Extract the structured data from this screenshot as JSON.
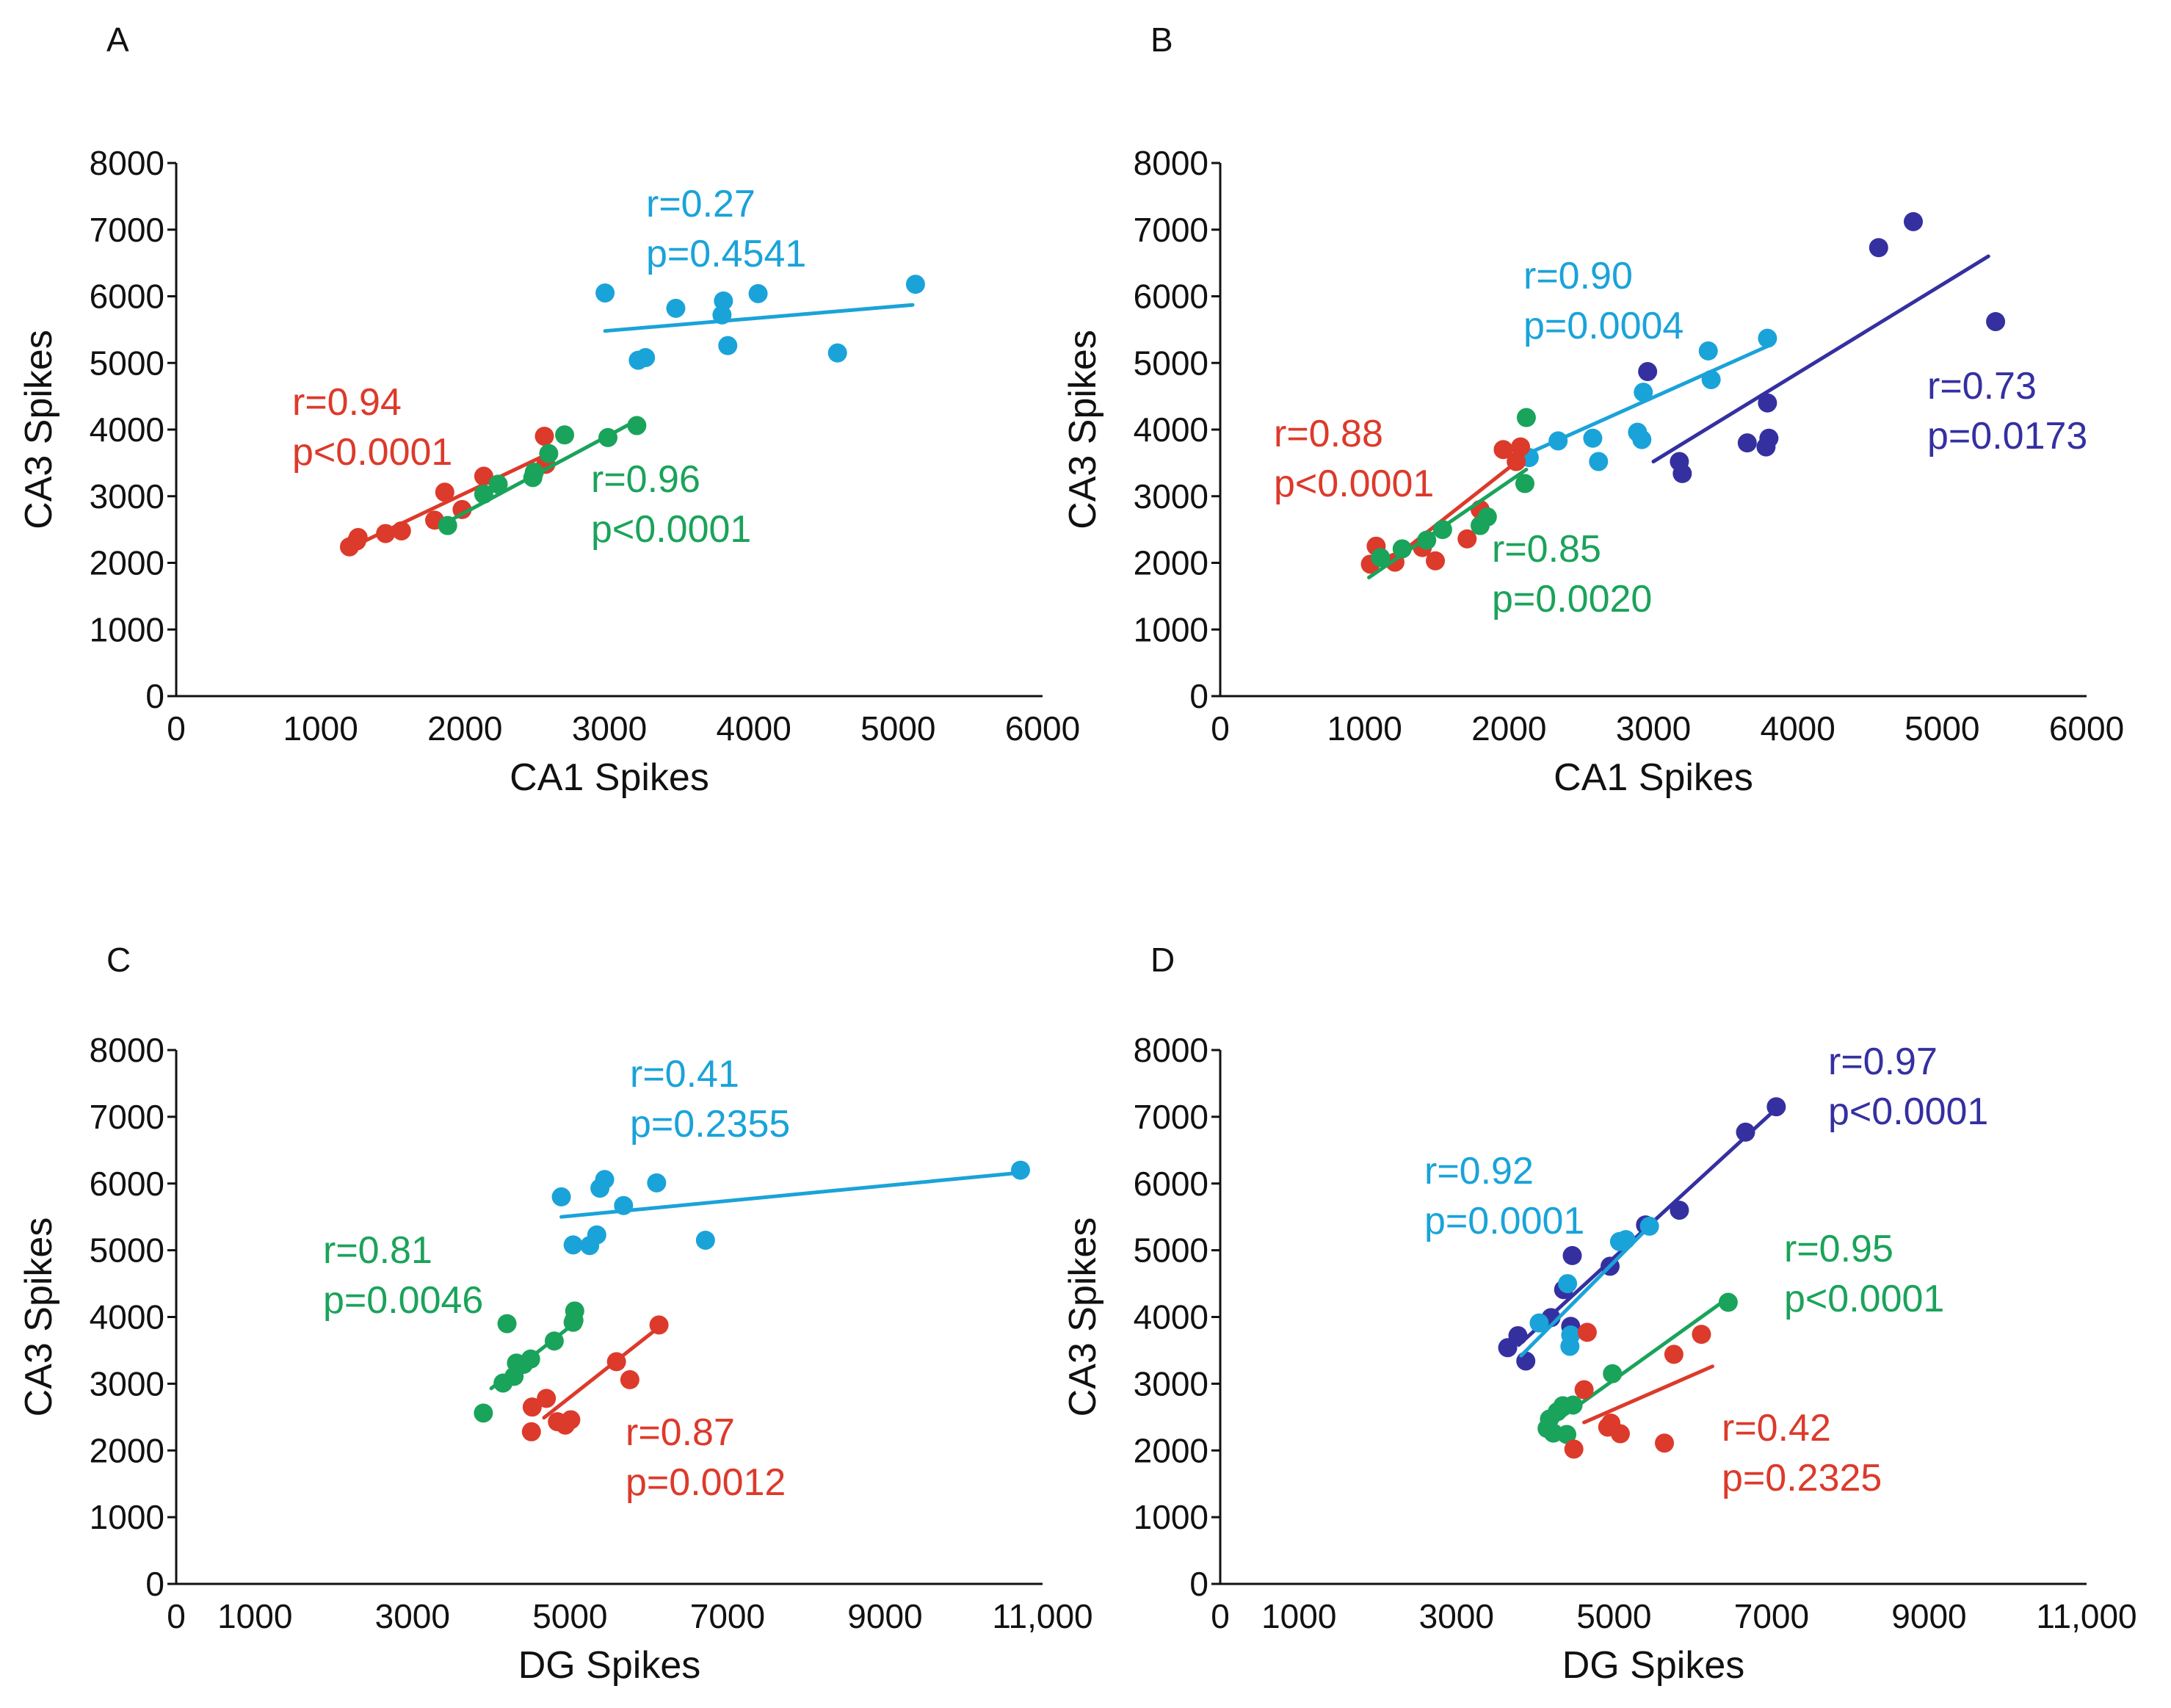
{
  "figure": "CA3 spike correlations",
  "colors": {
    "red": "#dc3a2b",
    "green": "#1aa35a",
    "cyan": "#1aa3d9",
    "purple": "#3530a0",
    "axis": "#111111"
  },
  "chart_data": [
    {
      "panel": "A",
      "type": "scatter",
      "xlabel": "CA1 Spikes",
      "ylabel": "CA3 Spikes",
      "xlim": [
        0,
        6000
      ],
      "ylim": [
        0,
        8000
      ],
      "xticks": [
        "0",
        "1000",
        "2000",
        "3000",
        "4000",
        "5000",
        "6000"
      ],
      "xtick_values": [
        0,
        1000,
        2000,
        3000,
        4000,
        5000,
        6000
      ],
      "yticks": [
        "0",
        "1000",
        "2000",
        "3000",
        "4000",
        "5000",
        "6000",
        "7000",
        "8000"
      ],
      "ytick_values": [
        0,
        1000,
        2000,
        3000,
        4000,
        5000,
        6000,
        7000,
        8000
      ],
      "series": [
        {
          "name": "cyan",
          "color": "cyan",
          "points": [
            [
              2970,
              6050
            ],
            [
              3200,
              5040
            ],
            [
              3250,
              5080
            ],
            [
              3460,
              5820
            ],
            [
              3780,
              5720
            ],
            [
              3790,
              5930
            ],
            [
              3820,
              5260
            ],
            [
              4030,
              6040
            ],
            [
              4580,
              5150
            ],
            [
              5120,
              6180
            ]
          ],
          "fit": [
            [
              2970,
              5480
            ],
            [
              5100,
              5870
            ]
          ]
        },
        {
          "name": "red",
          "color": "red",
          "points": [
            [
              1200,
              2240
            ],
            [
              1250,
              2330
            ],
            [
              1260,
              2380
            ],
            [
              1450,
              2440
            ],
            [
              1560,
              2480
            ],
            [
              1790,
              2640
            ],
            [
              1860,
              3060
            ],
            [
              1980,
              2800
            ],
            [
              2130,
              3300
            ],
            [
              2550,
              3900
            ],
            [
              2560,
              3480
            ]
          ],
          "fit": [
            [
              1180,
              2200
            ],
            [
              2560,
              3620
            ]
          ]
        },
        {
          "name": "green",
          "color": "green",
          "points": [
            [
              1880,
              2560
            ],
            [
              2130,
              3030
            ],
            [
              2230,
              3180
            ],
            [
              2470,
              3280
            ],
            [
              2480,
              3360
            ],
            [
              2580,
              3640
            ],
            [
              2690,
              3920
            ],
            [
              2990,
              3880
            ],
            [
              3190,
              4060
            ]
          ],
          "fit": [
            [
              1840,
              2570
            ],
            [
              3200,
              4150
            ]
          ]
        }
      ],
      "annotations": [
        {
          "color": "cyan",
          "r": "r=0.27",
          "p": "p=0.4541"
        },
        {
          "color": "red",
          "r": "r=0.94",
          "p": "p<0.0001"
        },
        {
          "color": "green",
          "r": "r=0.96",
          "p": "p<0.0001"
        }
      ]
    },
    {
      "panel": "B",
      "type": "scatter",
      "xlabel": "CA1 Spikes",
      "ylabel": "CA3 Spikes",
      "xlim": [
        0,
        6000
      ],
      "ylim": [
        0,
        8000
      ],
      "xticks": [
        "0",
        "1000",
        "2000",
        "3000",
        "4000",
        "5000",
        "6000"
      ],
      "xtick_values": [
        0,
        1000,
        2000,
        3000,
        4000,
        5000,
        6000
      ],
      "yticks": [
        "0",
        "1000",
        "2000",
        "3000",
        "4000",
        "5000",
        "6000",
        "7000",
        "8000"
      ],
      "ytick_values": [
        0,
        1000,
        2000,
        3000,
        4000,
        5000,
        6000,
        7000,
        8000
      ],
      "series": [
        {
          "name": "purple",
          "color": "purple",
          "points": [
            [
              2960,
              4870
            ],
            [
              3180,
              3520
            ],
            [
              3200,
              3340
            ],
            [
              3650,
              3800
            ],
            [
              3780,
              3740
            ],
            [
              3800,
              3870
            ],
            [
              3790,
              4400
            ],
            [
              4560,
              6730
            ],
            [
              4800,
              7120
            ],
            [
              5370,
              5620
            ]
          ],
          "fit": [
            [
              3000,
              3520
            ],
            [
              5320,
              6600
            ]
          ]
        },
        {
          "name": "cyan",
          "color": "cyan",
          "points": [
            [
              2140,
              3580
            ],
            [
              2340,
              3830
            ],
            [
              2580,
              3870
            ],
            [
              2620,
              3520
            ],
            [
              2890,
              3960
            ],
            [
              2920,
              3850
            ],
            [
              2930,
              4560
            ],
            [
              3380,
              5180
            ],
            [
              3400,
              4750
            ],
            [
              3790,
              5370
            ]
          ],
          "fit": [
            [
              2130,
              3640
            ],
            [
              3800,
              5260
            ]
          ]
        },
        {
          "name": "red",
          "color": "red",
          "points": [
            [
              1040,
              1980
            ],
            [
              1080,
              2250
            ],
            [
              1210,
              2010
            ],
            [
              1400,
              2230
            ],
            [
              1490,
              2030
            ],
            [
              1710,
              2360
            ],
            [
              1800,
              2800
            ],
            [
              1960,
              3700
            ],
            [
              2050,
              3520
            ],
            [
              2080,
              3740
            ]
          ],
          "fit": [
            [
              1180,
              2030
            ],
            [
              2090,
              3580
            ]
          ]
        },
        {
          "name": "green",
          "color": "green",
          "points": [
            [
              1110,
              2080
            ],
            [
              1260,
              2210
            ],
            [
              1430,
              2340
            ],
            [
              1540,
              2500
            ],
            [
              1800,
              2560
            ],
            [
              1850,
              2690
            ],
            [
              2110,
              3190
            ],
            [
              2120,
              4180
            ]
          ],
          "fit": [
            [
              1030,
              1780
            ],
            [
              2120,
              3400
            ]
          ]
        }
      ],
      "annotations": [
        {
          "color": "cyan",
          "r": "r=0.90",
          "p": "p=0.0004"
        },
        {
          "color": "purple",
          "r": "r=0.73",
          "p": "p=0.0173"
        },
        {
          "color": "red",
          "r": "r=0.88",
          "p": "p<0.0001"
        },
        {
          "color": "green",
          "r": "r=0.85",
          "p": "p=0.0020"
        }
      ]
    },
    {
      "panel": "C",
      "type": "scatter",
      "xlabel": "DG Spikes",
      "ylabel": "CA3 Spikes",
      "xlim": [
        0,
        11000
      ],
      "ylim": [
        0,
        8000
      ],
      "xticks": [
        "0",
        "1000",
        "3000",
        "5000",
        "7000",
        "9000",
        "11,000"
      ],
      "xtick_values": [
        0,
        1000,
        3000,
        5000,
        7000,
        9000,
        11000
      ],
      "yticks": [
        "0",
        "1000",
        "2000",
        "3000",
        "4000",
        "5000",
        "6000",
        "7000",
        "8000"
      ],
      "ytick_values": [
        0,
        1000,
        2000,
        3000,
        4000,
        5000,
        6000,
        7000,
        8000
      ],
      "series": [
        {
          "name": "cyan",
          "color": "cyan",
          "points": [
            [
              4890,
              5800
            ],
            [
              5040,
              5080
            ],
            [
              5250,
              5070
            ],
            [
              5340,
              5230
            ],
            [
              5380,
              5930
            ],
            [
              5440,
              6060
            ],
            [
              5680,
              5670
            ],
            [
              6100,
              6010
            ],
            [
              6720,
              5150
            ],
            [
              10720,
              6200
            ]
          ],
          "fit": [
            [
              4890,
              5500
            ],
            [
              10700,
              6160
            ]
          ]
        },
        {
          "name": "green",
          "color": "green",
          "points": [
            [
              3900,
              2560
            ],
            [
              4150,
              3010
            ],
            [
              4200,
              3900
            ],
            [
              4290,
              3110
            ],
            [
              4320,
              3310
            ],
            [
              4410,
              3290
            ],
            [
              4500,
              3370
            ],
            [
              4800,
              3640
            ],
            [
              5040,
              3920
            ],
            [
              5050,
              3950
            ],
            [
              5060,
              4090
            ]
          ],
          "fit": [
            [
              4000,
              2930
            ],
            [
              5070,
              3920
            ]
          ]
        },
        {
          "name": "red",
          "color": "red",
          "points": [
            [
              4510,
              2280
            ],
            [
              4520,
              2650
            ],
            [
              4700,
              2780
            ],
            [
              4840,
              2430
            ],
            [
              4940,
              2380
            ],
            [
              5010,
              2460
            ],
            [
              5590,
              3330
            ],
            [
              5760,
              3060
            ],
            [
              6130,
              3880
            ]
          ],
          "fit": [
            [
              4670,
              2490
            ],
            [
              6100,
              3820
            ]
          ]
        }
      ],
      "annotations": [
        {
          "color": "cyan",
          "r": "r=0.41",
          "p": "p=0.2355"
        },
        {
          "color": "green",
          "r": "r=0.81",
          "p": "p=0.0046"
        },
        {
          "color": "red",
          "r": "r=0.87",
          "p": "p=0.0012"
        }
      ]
    },
    {
      "panel": "D",
      "type": "scatter",
      "xlabel": "DG Spikes",
      "ylabel": "CA3 Spikes",
      "xlim": [
        0,
        11000
      ],
      "ylim": [
        0,
        8000
      ],
      "xticks": [
        "0",
        "1000",
        "3000",
        "5000",
        "7000",
        "9000",
        "11,000"
      ],
      "xtick_values": [
        0,
        1000,
        3000,
        5000,
        7000,
        9000,
        11000
      ],
      "yticks": [
        "0",
        "1000",
        "2000",
        "3000",
        "4000",
        "5000",
        "6000",
        "7000",
        "8000"
      ],
      "ytick_values": [
        0,
        1000,
        2000,
        3000,
        4000,
        5000,
        6000,
        7000,
        8000
      ],
      "series": [
        {
          "name": "purple",
          "color": "purple",
          "points": [
            [
              3650,
              3540
            ],
            [
              3780,
              3720
            ],
            [
              3880,
              3340
            ],
            [
              4200,
              3990
            ],
            [
              4360,
              4410
            ],
            [
              4470,
              4920
            ],
            [
              4450,
              3860
            ],
            [
              4950,
              4760
            ],
            [
              5400,
              5380
            ],
            [
              5830,
              5600
            ],
            [
              6670,
              6770
            ],
            [
              7060,
              7150
            ]
          ],
          "fit": [
            [
              3790,
              3580
            ],
            [
              7040,
              7100
            ]
          ]
        },
        {
          "name": "cyan",
          "color": "cyan",
          "points": [
            [
              4050,
              3910
            ],
            [
              4410,
              4500
            ],
            [
              4440,
              3560
            ],
            [
              4450,
              3730
            ],
            [
              5070,
              5130
            ],
            [
              5150,
              5160
            ],
            [
              5450,
              5360
            ]
          ],
          "fit": [
            [
              3820,
              3420
            ],
            [
              5400,
              5300
            ]
          ]
        },
        {
          "name": "green",
          "color": "green",
          "points": [
            [
              4150,
              2330
            ],
            [
              4180,
              2470
            ],
            [
              4230,
              2260
            ],
            [
              4280,
              2580
            ],
            [
              4350,
              2670
            ],
            [
              4400,
              2240
            ],
            [
              4480,
              2680
            ],
            [
              4980,
              3150
            ],
            [
              6450,
              4220
            ]
          ],
          "fit": [
            [
              4280,
              2450
            ],
            [
              6430,
              4270
            ]
          ]
        },
        {
          "name": "red",
          "color": "red",
          "points": [
            [
              4490,
              2020
            ],
            [
              4620,
              2910
            ],
            [
              4660,
              3770
            ],
            [
              4920,
              2350
            ],
            [
              4960,
              2410
            ],
            [
              5080,
              2250
            ],
            [
              5640,
              2110
            ],
            [
              5760,
              3440
            ],
            [
              6110,
              3740
            ]
          ],
          "fit": [
            [
              4620,
              2420
            ],
            [
              6250,
              3260
            ]
          ]
        }
      ],
      "annotations": [
        {
          "color": "purple",
          "r": "r=0.97",
          "p": "p<0.0001"
        },
        {
          "color": "cyan",
          "r": "r=0.92",
          "p": "p=0.0001"
        },
        {
          "color": "green",
          "r": "r=0.95",
          "p": "p<0.0001"
        },
        {
          "color": "red",
          "r": "r=0.42",
          "p": "p=0.2325"
        }
      ]
    }
  ]
}
